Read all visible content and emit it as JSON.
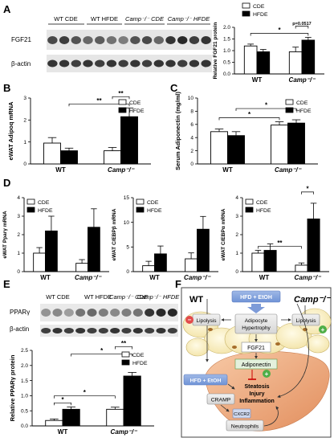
{
  "panels": {
    "A": "A",
    "B": "B",
    "C": "C",
    "D": "D",
    "E": "E",
    "F": "F"
  },
  "blotA": {
    "groups": [
      "WT CDE",
      "WT HFDE",
      "Camp⁻/⁻ CDE",
      "Camp⁻/⁻ HFDE"
    ],
    "rows": [
      "FGF21",
      "β-actin"
    ]
  },
  "blotE": {
    "groups": [
      "WT CDE",
      "WT HFDE",
      "Camp⁻/⁻ CDE",
      "Camp⁻/⁻ HFDE"
    ],
    "rows": [
      "PPARγ",
      "β-actin"
    ]
  },
  "chart_data": [
    {
      "id": "A",
      "type": "bar",
      "ylabel": "Relative FGF21 protein",
      "ylim": [
        0,
        2.0
      ],
      "yticks": [
        0,
        0.5,
        1.0,
        1.5,
        2.0
      ],
      "categories": [
        "WT",
        "Camp⁻/⁻"
      ],
      "legend": [
        "CDE",
        "HFDE"
      ],
      "series": [
        {
          "name": "CDE",
          "values": [
            1.2,
            0.95
          ],
          "errors": [
            0.08,
            0.2
          ]
        },
        {
          "name": "HFDE",
          "values": [
            0.95,
            1.45
          ],
          "errors": [
            0.1,
            0.12
          ]
        }
      ],
      "annotations": [
        {
          "from": [
            0,
            0
          ],
          "to": [
            1,
            1
          ],
          "text": "*"
        },
        {
          "from": [
            1,
            0
          ],
          "to": [
            1,
            1
          ],
          "text": "p=0.0517"
        }
      ]
    },
    {
      "id": "B",
      "type": "bar",
      "ylabel": "eWAT Adipoq mRNA",
      "ylim": [
        0,
        3
      ],
      "yticks": [
        0,
        1,
        2,
        3
      ],
      "categories": [
        "WT",
        "Camp⁻/⁻"
      ],
      "legend": [
        "CDE",
        "HFDE"
      ],
      "series": [
        {
          "name": "CDE",
          "values": [
            0.95,
            0.6
          ],
          "errors": [
            0.25,
            0.15
          ]
        },
        {
          "name": "HFDE",
          "values": [
            0.6,
            2.15
          ],
          "errors": [
            0.12,
            0.4
          ]
        }
      ],
      "annotations": [
        {
          "from": [
            0,
            1
          ],
          "to": [
            1,
            1
          ],
          "text": "**"
        },
        {
          "from": [
            1,
            0
          ],
          "to": [
            1,
            1
          ],
          "text": "**"
        }
      ]
    },
    {
      "id": "C",
      "type": "bar",
      "ylabel": "Serum Adiponectin (mg/ml)",
      "ylim": [
        0,
        10
      ],
      "yticks": [
        0,
        2,
        4,
        6,
        8,
        10
      ],
      "categories": [
        "WT",
        "Camp⁻/⁻"
      ],
      "legend": [
        "CDE",
        "HFDE"
      ],
      "series": [
        {
          "name": "CDE",
          "values": [
            4.9,
            5.9
          ],
          "errors": [
            0.4,
            0.5
          ]
        },
        {
          "name": "HFDE",
          "values": [
            4.3,
            6.2
          ],
          "errors": [
            0.6,
            0.5
          ]
        }
      ],
      "annotations": [
        {
          "from": [
            0,
            0
          ],
          "to": [
            1,
            0
          ],
          "text": "*"
        },
        {
          "from": [
            0,
            1
          ],
          "to": [
            1,
            1
          ],
          "text": "*"
        }
      ]
    },
    {
      "id": "D1",
      "type": "bar",
      "ylabel": "eWAT Pparγ mRNA",
      "ylim": [
        0,
        4
      ],
      "yticks": [
        0,
        1,
        2,
        3,
        4
      ],
      "categories": [
        "WT",
        "Camp⁻/⁻"
      ],
      "legend": [
        "CDE",
        "HFDE"
      ],
      "series": [
        {
          "name": "CDE",
          "values": [
            1.0,
            0.45
          ],
          "errors": [
            0.3,
            0.2
          ]
        },
        {
          "name": "HFDE",
          "values": [
            2.2,
            2.4
          ],
          "errors": [
            0.8,
            1.0
          ]
        }
      ],
      "annotations": []
    },
    {
      "id": "D2",
      "type": "bar",
      "ylabel": "eWAT C/EBPβ mRNA",
      "ylim": [
        0,
        15
      ],
      "yticks": [
        0,
        5,
        10,
        15
      ],
      "categories": [
        "WT",
        "Camp⁻/⁻"
      ],
      "legend": [
        "CDE",
        "HFDE"
      ],
      "series": [
        {
          "name": "CDE",
          "values": [
            1.2,
            2.6
          ],
          "errors": [
            0.9,
            1.2
          ]
        },
        {
          "name": "HFDE",
          "values": [
            3.6,
            8.6
          ],
          "errors": [
            1.6,
            2.6
          ]
        }
      ],
      "annotations": []
    },
    {
      "id": "D3",
      "type": "bar",
      "ylabel": "eWAT C/EBPα mRNA",
      "ylim": [
        0,
        4
      ],
      "yticks": [
        0,
        1,
        2,
        3,
        4
      ],
      "categories": [
        "WT",
        "Camp⁻/⁻"
      ],
      "legend": [
        "CDE",
        "HFDE"
      ],
      "series": [
        {
          "name": "CDE",
          "values": [
            1.0,
            0.35
          ],
          "errors": [
            0.15,
            0.12
          ]
        },
        {
          "name": "HFDE",
          "values": [
            1.15,
            2.85
          ],
          "errors": [
            0.35,
            0.85
          ]
        }
      ],
      "annotations": [
        {
          "from": [
            0,
            0
          ],
          "to": [
            1,
            0
          ],
          "text": "**"
        },
        {
          "from": [
            1,
            0
          ],
          "to": [
            1,
            1
          ],
          "text": "*"
        }
      ]
    },
    {
      "id": "E",
      "type": "bar",
      "ylabel": "Relative PPARγ protein",
      "ylim": [
        0,
        2.5
      ],
      "yticks": [
        0,
        0.5,
        1.0,
        1.5,
        2.0,
        2.5
      ],
      "categories": [
        "WT",
        "Camp⁻/⁻"
      ],
      "legend": [
        "CDE",
        "HFDE"
      ],
      "series": [
        {
          "name": "CDE",
          "values": [
            0.18,
            0.55
          ],
          "errors": [
            0.05,
            0.07
          ]
        },
        {
          "name": "HFDE",
          "values": [
            0.55,
            1.65
          ],
          "errors": [
            0.08,
            0.12
          ]
        }
      ],
      "annotations": [
        {
          "from": [
            0,
            0
          ],
          "to": [
            0,
            1
          ],
          "text": "*"
        },
        {
          "from": [
            0,
            0
          ],
          "to": [
            1,
            0
          ],
          "text": "*"
        },
        {
          "from": [
            0,
            1
          ],
          "to": [
            1,
            1
          ],
          "text": "*"
        },
        {
          "from": [
            1,
            0
          ],
          "to": [
            1,
            1
          ],
          "text": "**"
        }
      ]
    }
  ],
  "diagram": {
    "hfd_top": "HFD + EtOH",
    "wt": "WT",
    "camp": "Camp⁻/⁻",
    "lipolysis": "Lipolysis",
    "adipocyte": [
      "Adipocyte",
      "Hypertrophy"
    ],
    "fgf21": "FGF21",
    "adiponectin": "Adiponectin",
    "hfd_left": "HFD + EtOH",
    "liver": [
      "Steatosis",
      "Injury",
      "Inflammation"
    ],
    "cramp": "CRAMP",
    "cxcr2": "CXCR2",
    "neutrophils": "Neutrophils"
  }
}
